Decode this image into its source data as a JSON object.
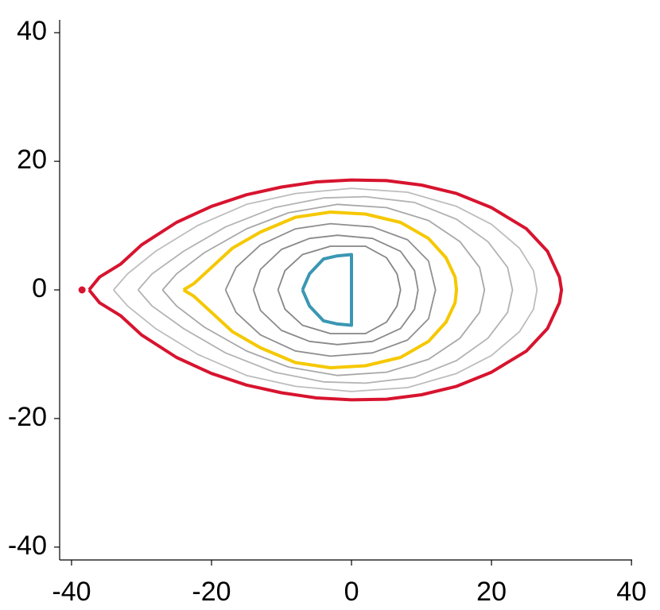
{
  "chart_data": {
    "type": "line",
    "xlim": [
      -41.7,
      40.1
    ],
    "ylim": [
      -42,
      42
    ],
    "xticks": [
      -40,
      -20,
      0,
      20,
      40
    ],
    "yticks": [
      -40,
      -20,
      0,
      20,
      40
    ],
    "series": [
      {
        "color": "#bdbdbd",
        "linewidth": 1.8,
        "x": [
          -34,
          -32,
          -28,
          -22,
          -15,
          -8,
          0,
          8,
          15,
          20,
          24,
          26,
          26.5,
          26,
          24,
          20,
          15,
          8,
          0,
          -8,
          -15,
          -22,
          -28,
          -32,
          -34
        ],
        "y": [
          0,
          2.5,
          6,
          10,
          13.3,
          15,
          15.8,
          15.2,
          13,
          10.2,
          6.5,
          3,
          0,
          -3,
          -6.5,
          -10.2,
          -13,
          -15.2,
          -15.8,
          -15,
          -13.3,
          -10,
          -6,
          -2.5,
          0
        ]
      },
      {
        "color": "#b3b3b3",
        "linewidth": 1.8,
        "x": [
          -30.5,
          -28.5,
          -24,
          -18,
          -11,
          -4,
          2,
          9,
          15,
          19.5,
          22.3,
          23,
          22.3,
          19.5,
          15,
          9,
          2,
          -4,
          -11,
          -18,
          -24,
          -28.5,
          -30.5
        ],
        "y": [
          0,
          2.5,
          6,
          9.8,
          12.8,
          14.3,
          14.5,
          13.6,
          11,
          7.5,
          3.5,
          0,
          -3.5,
          -7.5,
          -11,
          -13.6,
          -14.5,
          -14.3,
          -12.8,
          -9.8,
          -6,
          -2.5,
          0
        ]
      },
      {
        "color": "#a8a8a8",
        "linewidth": 1.8,
        "x": [
          -27,
          -25,
          -21,
          -15,
          -9,
          -2,
          5,
          11,
          15.5,
          18.3,
          19,
          18.3,
          15.5,
          11,
          5,
          -2,
          -9,
          -15,
          -21,
          -25,
          -27
        ],
        "y": [
          0,
          2.5,
          5.8,
          9.5,
          12,
          13.3,
          12.8,
          10.8,
          7.5,
          3.5,
          0,
          -3.5,
          -7.5,
          -10.8,
          -12.8,
          -13.3,
          -12,
          -9.5,
          -5.8,
          -2.5,
          0
        ]
      },
      {
        "color": "#8f8f8f",
        "linewidth": 1.8,
        "x": [
          -18,
          -16.5,
          -13,
          -8,
          -3,
          3,
          8,
          11,
          12,
          11,
          8,
          3,
          -3,
          -8,
          -13,
          -16.5,
          -18
        ],
        "y": [
          0,
          3.5,
          7,
          9.5,
          10.3,
          9.8,
          7.8,
          4.5,
          0,
          -4.5,
          -7.8,
          -9.8,
          -10.3,
          -9.5,
          -7,
          -3.5,
          0
        ]
      },
      {
        "color": "#8a8a8a",
        "linewidth": 1.8,
        "x": [
          -14,
          -13,
          -10,
          -6,
          -2,
          3,
          7,
          9,
          9.5,
          9,
          7,
          3,
          -2,
          -6,
          -10,
          -13,
          -14
        ],
        "y": [
          0,
          3.2,
          6.3,
          8,
          8.5,
          8,
          6,
          3,
          0,
          -3,
          -6,
          -8,
          -8.5,
          -8,
          -6.3,
          -3.2,
          0
        ]
      },
      {
        "color": "#858585",
        "linewidth": 1.8,
        "x": [
          -10.5,
          -9.5,
          -7,
          -3,
          2,
          5,
          6.5,
          7,
          6.5,
          5,
          2,
          -3,
          -7,
          -9.5,
          -10.5
        ],
        "y": [
          0,
          3,
          5.5,
          6.8,
          6.8,
          5,
          2.5,
          0,
          -2.5,
          -5,
          -6.8,
          -6.8,
          -5.5,
          -3,
          0
        ]
      },
      {
        "color": "#d7142f",
        "linewidth": 4,
        "x": [
          -37.5,
          -36,
          -33,
          -30,
          -25,
          -20,
          -15,
          -10,
          -5,
          0,
          5,
          10,
          15,
          20,
          25,
          28,
          29.7,
          30,
          29.7,
          28,
          25,
          20,
          15,
          10,
          5,
          0,
          -5,
          -10,
          -15,
          -20,
          -25,
          -30,
          -33,
          -36,
          -37.5
        ],
        "y": [
          0,
          2,
          4,
          7,
          10.5,
          13,
          14.8,
          16,
          16.8,
          17.1,
          17,
          16.3,
          15,
          12.8,
          9.5,
          6,
          2,
          0,
          -2,
          -6,
          -9.5,
          -12.8,
          -15,
          -16.3,
          -17,
          -17.1,
          -16.8,
          -16,
          -14.8,
          -13,
          -10.5,
          -7,
          -4,
          -2,
          0
        ]
      },
      {
        "color": "#f5c800",
        "linewidth": 4,
        "x": [
          -24,
          -22.5,
          -20,
          -17,
          -13,
          -8,
          -3,
          2,
          7,
          11,
          13.5,
          14.8,
          15,
          14.8,
          13.5,
          11,
          7,
          2,
          -3,
          -8,
          -13,
          -17,
          -20,
          -22.5,
          -24
        ],
        "y": [
          0,
          1,
          3.5,
          6.5,
          9,
          11.3,
          12.1,
          11.8,
          10.5,
          8,
          5,
          2,
          0,
          -2,
          -5,
          -8,
          -10.5,
          -11.8,
          -12.1,
          -11.3,
          -9,
          -6.5,
          -3.5,
          -1,
          0
        ]
      },
      {
        "color": "#3a97b3",
        "linewidth": 4,
        "x": [
          -7,
          -6,
          -4,
          -2,
          0,
          0,
          0,
          0,
          0,
          -2,
          -4,
          -6,
          -7
        ],
        "y": [
          0,
          2.5,
          4.8,
          5.3,
          5.5,
          3,
          0,
          -3,
          -5.5,
          -5.3,
          -4.8,
          -2.5,
          0
        ]
      }
    ],
    "points": [
      {
        "x": -38.5,
        "y": 0,
        "color": "#d7142f"
      }
    ]
  }
}
